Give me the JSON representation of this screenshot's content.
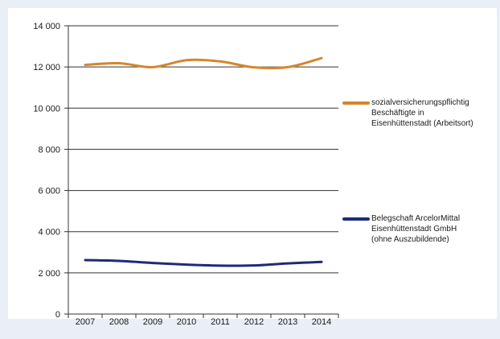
{
  "chart_data": {
    "type": "line",
    "categories": [
      "2007",
      "2008",
      "2009",
      "2010",
      "2011",
      "2012",
      "2013",
      "2014"
    ],
    "y_tick_labels": [
      "14 000",
      "12 000",
      "10 000",
      "8 000",
      "6 000",
      "4 000",
      "2 000",
      "0"
    ],
    "ylim": [
      0,
      14000
    ],
    "y_ticks": [
      0,
      2000,
      4000,
      6000,
      8000,
      10000,
      12000,
      14000
    ],
    "grid": "horizontal",
    "legend_position": "right",
    "series": [
      {
        "name_lines": [
          "sozialversicherungspflichtig",
          "Beschäftigte in",
          "Eisenhüttenstadt (Arbeitsort)"
        ],
        "values": [
          12100,
          12180,
          11990,
          12330,
          12270,
          11980,
          11990,
          12430
        ],
        "color": "#d4872e"
      },
      {
        "name_lines": [
          "Belegschaft ArcelorMittal",
          "Eisenhüttenstadt GmbH",
          "(ohne Auszubildende)"
        ],
        "values": [
          2620,
          2580,
          2480,
          2400,
          2350,
          2360,
          2460,
          2530
        ],
        "color": "#1f2a7a"
      }
    ]
  }
}
